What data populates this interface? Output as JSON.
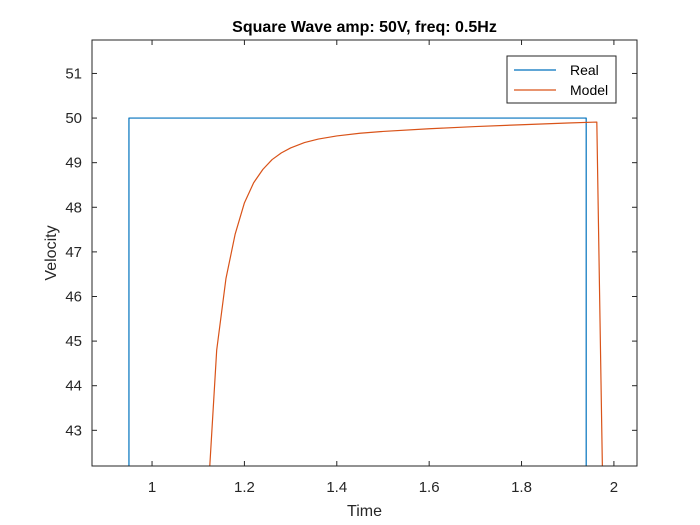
{
  "chart_data": {
    "type": "line",
    "title": "Square Wave amp: 50V, freq: 0.5Hz",
    "xlabel": "Time",
    "ylabel": "Velocity",
    "xlim": [
      0.87,
      2.05
    ],
    "ylim": [
      42.2,
      51.75
    ],
    "xticks": [
      1,
      1.2,
      1.4,
      1.6,
      1.8,
      2
    ],
    "xtick_labels": [
      "1",
      "1.2",
      "1.4",
      "1.6",
      "1.8",
      "2"
    ],
    "yticks": [
      43,
      44,
      45,
      46,
      47,
      48,
      49,
      50,
      51
    ],
    "ytick_labels": [
      "43",
      "44",
      "45",
      "46",
      "47",
      "48",
      "49",
      "50",
      "51"
    ],
    "grid": false,
    "legend_position": "top-right",
    "series": [
      {
        "name": "Real",
        "color": "#0072BD",
        "x": [
          0.95,
          0.95,
          1.94,
          1.94
        ],
        "y": [
          42.2,
          50.0,
          50.0,
          42.2
        ]
      },
      {
        "name": "Model",
        "color": "#D95319",
        "x": [
          1.125,
          1.14,
          1.16,
          1.18,
          1.2,
          1.22,
          1.24,
          1.26,
          1.28,
          1.3,
          1.33,
          1.36,
          1.4,
          1.45,
          1.5,
          1.6,
          1.7,
          1.8,
          1.9,
          1.963,
          1.975
        ],
        "y": [
          42.2,
          44.8,
          46.4,
          47.4,
          48.1,
          48.55,
          48.85,
          49.07,
          49.22,
          49.33,
          49.45,
          49.53,
          49.6,
          49.66,
          49.7,
          49.76,
          49.81,
          49.85,
          49.89,
          49.91,
          42.2
        ]
      }
    ]
  }
}
